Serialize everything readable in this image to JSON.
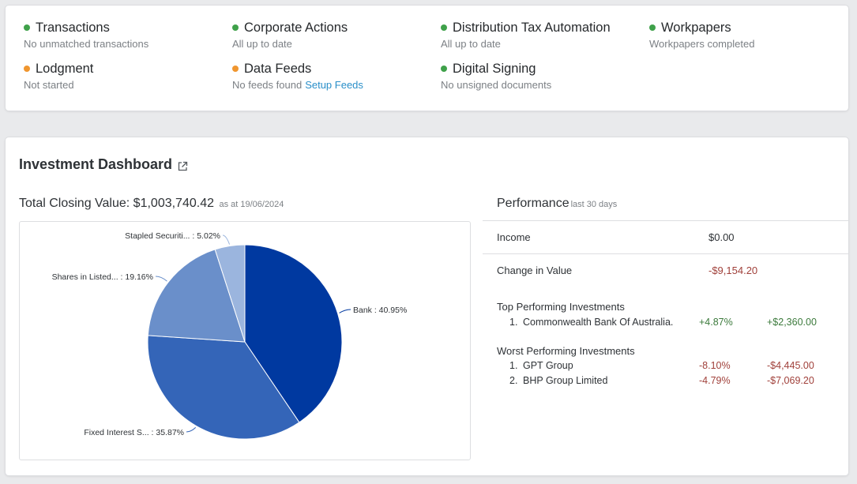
{
  "status": [
    {
      "title": "Transactions",
      "subtitle": "No unmatched transactions",
      "status_color": "green"
    },
    {
      "title": "Corporate Actions",
      "subtitle": "All up to date",
      "status_color": "green"
    },
    {
      "title": "Distribution Tax Automation",
      "subtitle": "All up to date",
      "status_color": "green"
    },
    {
      "title": "Workpapers",
      "subtitle": "Workpapers completed",
      "status_color": "green"
    },
    {
      "title": "Lodgment",
      "subtitle": "Not started",
      "status_color": "orange"
    },
    {
      "title": "Data Feeds",
      "subtitle": "No feeds found",
      "status_color": "orange",
      "link": "Setup Feeds"
    },
    {
      "title": "Digital Signing",
      "subtitle": "No unsigned documents",
      "status_color": "green"
    }
  ],
  "colors": {
    "green": "#3fa14a",
    "orange": "#f0962f",
    "link": "#2a8fc9",
    "negative": "#a0403a",
    "positive": "#3c7a3c"
  },
  "dashboard": {
    "title": "Investment Dashboard",
    "title_icon": "external-link-icon",
    "closing_label": "Total Closing Value: $1,003,740.42",
    "closing_asat": "as at 19/06/2024"
  },
  "chart_data": {
    "type": "pie",
    "slices": [
      {
        "label": "Bank",
        "value": 40.95,
        "display": "Bank : 40.95%",
        "color": "#0039a0"
      },
      {
        "label": "Fixed Interest S...",
        "value": 35.87,
        "display": "Fixed Interest S... : 35.87%",
        "color": "#3465b8"
      },
      {
        "label": "Shares in Listed...",
        "value": 19.16,
        "display": "Shares in Listed... : 19.16%",
        "color": "#6a8fca"
      },
      {
        "label": "Stapled Securiti...",
        "value": 5.02,
        "display": "Stapled Securiti... : 5.02%",
        "color": "#9bb5de"
      }
    ]
  },
  "performance": {
    "title": "Performance",
    "period": "last 30 days",
    "income_label": "Income",
    "income_value": "$0.00",
    "change_label": "Change in Value",
    "change_value": "-$9,154.20",
    "top_title": "Top Performing Investments",
    "top": [
      {
        "num": "1.",
        "name": "Commonwealth Bank Of Australia.",
        "pct": "+4.87%",
        "amount": "+$2,360.00"
      }
    ],
    "worst_title": "Worst Performing Investments",
    "worst": [
      {
        "num": "1.",
        "name": "GPT Group",
        "pct": "-8.10%",
        "amount": "-$4,445.00"
      },
      {
        "num": "2.",
        "name": "BHP Group Limited",
        "pct": "-4.79%",
        "amount": "-$7,069.20"
      }
    ]
  }
}
